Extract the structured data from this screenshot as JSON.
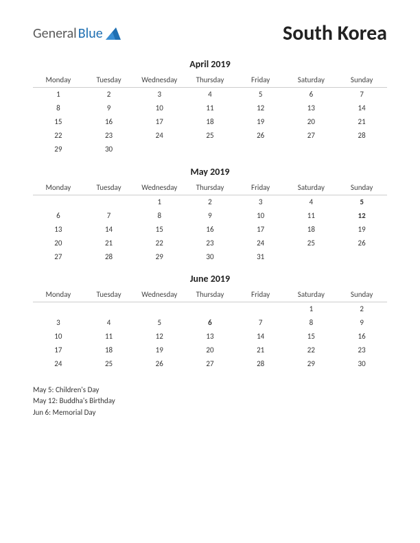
{
  "logo": {
    "text1": "General",
    "text2": "Blue"
  },
  "country": "South Korea",
  "day_headers": [
    "Monday",
    "Tuesday",
    "Wednesday",
    "Thursday",
    "Friday",
    "Saturday",
    "Sunday"
  ],
  "colors": {
    "background": "#ffffff",
    "text": "#333333",
    "holiday": "#d40000",
    "logo_blue": "#1f6fb2",
    "logo_gray": "#5a5a5a",
    "header_border": "#cccccc"
  },
  "fonts": {
    "body_pt": 11,
    "month_title_pt": 14,
    "country_pt": 30,
    "logo_pt": 20
  },
  "months": [
    {
      "title": "April 2019",
      "weeks": [
        [
          {
            "d": "1"
          },
          {
            "d": "2"
          },
          {
            "d": "3"
          },
          {
            "d": "4"
          },
          {
            "d": "5"
          },
          {
            "d": "6"
          },
          {
            "d": "7"
          }
        ],
        [
          {
            "d": "8"
          },
          {
            "d": "9"
          },
          {
            "d": "10"
          },
          {
            "d": "11"
          },
          {
            "d": "12"
          },
          {
            "d": "13"
          },
          {
            "d": "14"
          }
        ],
        [
          {
            "d": "15"
          },
          {
            "d": "16"
          },
          {
            "d": "17"
          },
          {
            "d": "18"
          },
          {
            "d": "19"
          },
          {
            "d": "20"
          },
          {
            "d": "21"
          }
        ],
        [
          {
            "d": "22"
          },
          {
            "d": "23"
          },
          {
            "d": "24"
          },
          {
            "d": "25"
          },
          {
            "d": "26"
          },
          {
            "d": "27"
          },
          {
            "d": "28"
          }
        ],
        [
          {
            "d": "29"
          },
          {
            "d": "30"
          },
          {
            "d": ""
          },
          {
            "d": ""
          },
          {
            "d": ""
          },
          {
            "d": ""
          },
          {
            "d": ""
          }
        ]
      ]
    },
    {
      "title": "May 2019",
      "weeks": [
        [
          {
            "d": ""
          },
          {
            "d": ""
          },
          {
            "d": "1"
          },
          {
            "d": "2"
          },
          {
            "d": "3"
          },
          {
            "d": "4"
          },
          {
            "d": "5",
            "h": true
          }
        ],
        [
          {
            "d": "6"
          },
          {
            "d": "7"
          },
          {
            "d": "8"
          },
          {
            "d": "9"
          },
          {
            "d": "10"
          },
          {
            "d": "11"
          },
          {
            "d": "12",
            "h": true
          }
        ],
        [
          {
            "d": "13"
          },
          {
            "d": "14"
          },
          {
            "d": "15"
          },
          {
            "d": "16"
          },
          {
            "d": "17"
          },
          {
            "d": "18"
          },
          {
            "d": "19"
          }
        ],
        [
          {
            "d": "20"
          },
          {
            "d": "21"
          },
          {
            "d": "22"
          },
          {
            "d": "23"
          },
          {
            "d": "24"
          },
          {
            "d": "25"
          },
          {
            "d": "26"
          }
        ],
        [
          {
            "d": "27"
          },
          {
            "d": "28"
          },
          {
            "d": "29"
          },
          {
            "d": "30"
          },
          {
            "d": "31"
          },
          {
            "d": ""
          },
          {
            "d": ""
          }
        ]
      ]
    },
    {
      "title": "June 2019",
      "weeks": [
        [
          {
            "d": ""
          },
          {
            "d": ""
          },
          {
            "d": ""
          },
          {
            "d": ""
          },
          {
            "d": ""
          },
          {
            "d": "1"
          },
          {
            "d": "2"
          }
        ],
        [
          {
            "d": "3"
          },
          {
            "d": "4"
          },
          {
            "d": "5"
          },
          {
            "d": "6",
            "h": true
          },
          {
            "d": "7"
          },
          {
            "d": "8"
          },
          {
            "d": "9"
          }
        ],
        [
          {
            "d": "10"
          },
          {
            "d": "11"
          },
          {
            "d": "12"
          },
          {
            "d": "13"
          },
          {
            "d": "14"
          },
          {
            "d": "15"
          },
          {
            "d": "16"
          }
        ],
        [
          {
            "d": "17"
          },
          {
            "d": "18"
          },
          {
            "d": "19"
          },
          {
            "d": "20"
          },
          {
            "d": "21"
          },
          {
            "d": "22"
          },
          {
            "d": "23"
          }
        ],
        [
          {
            "d": "24"
          },
          {
            "d": "25"
          },
          {
            "d": "26"
          },
          {
            "d": "27"
          },
          {
            "d": "28"
          },
          {
            "d": "29"
          },
          {
            "d": "30"
          }
        ]
      ]
    }
  ],
  "holidays": [
    "May 5: Children's Day",
    "May 12: Buddha's Birthday",
    "Jun 6: Memorial Day"
  ]
}
